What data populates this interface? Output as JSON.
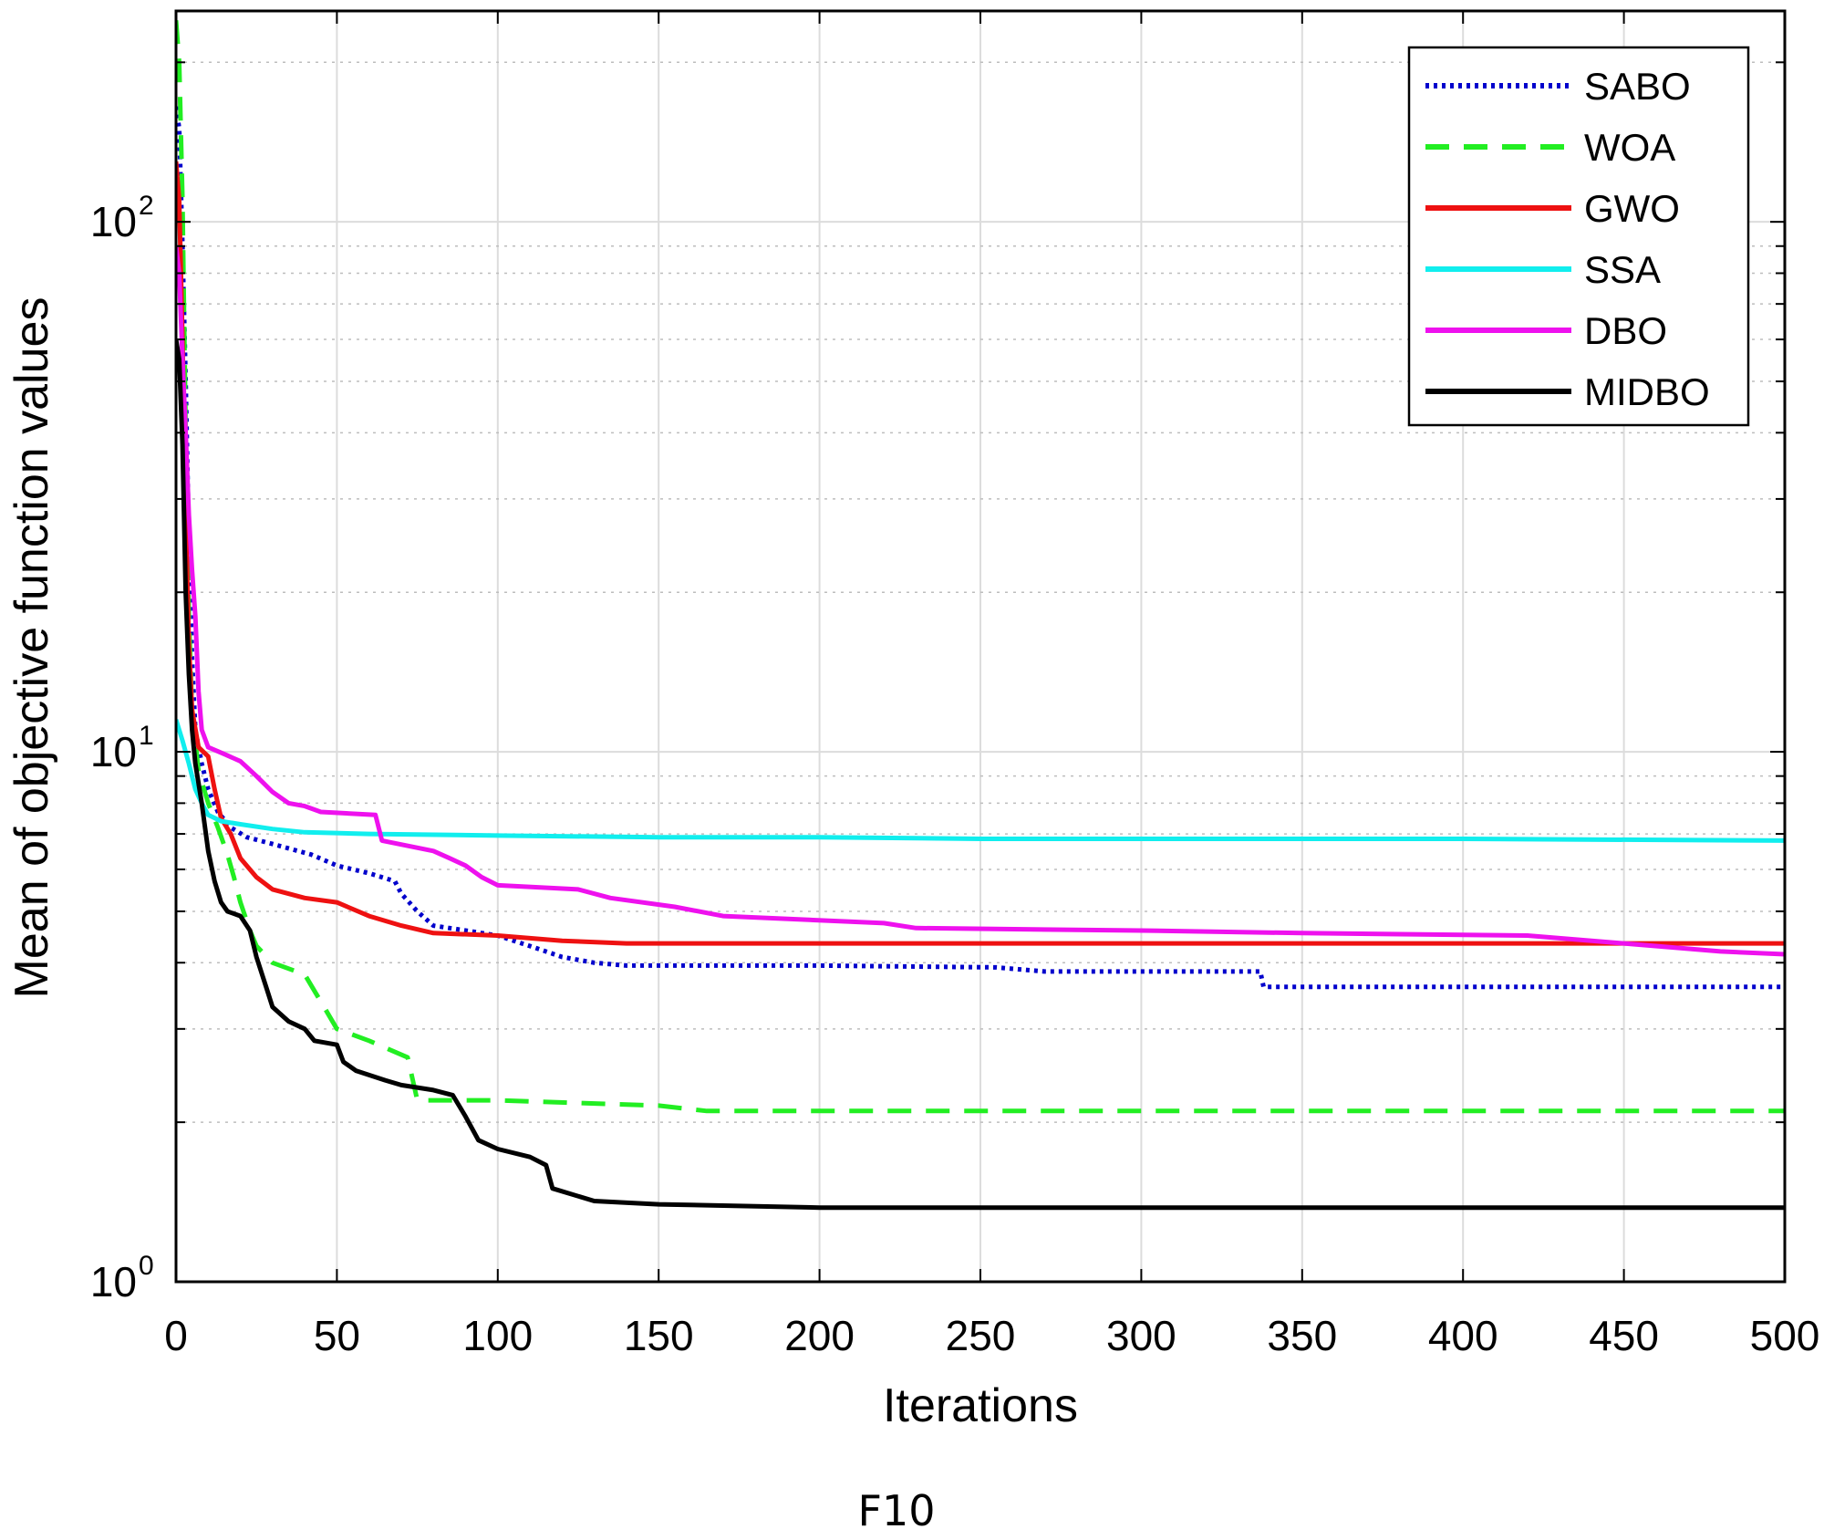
{
  "chart_data": {
    "type": "line",
    "title": "",
    "caption": "F10",
    "xlabel": "Iterations",
    "ylabel": "Mean of objective function values",
    "xlim": [
      0,
      500
    ],
    "ylim": [
      1,
      250
    ],
    "yscale": "log",
    "grid": true,
    "legend_position": "top-right",
    "x_ticks": [
      "0",
      "50",
      "100",
      "150",
      "200",
      "250",
      "300",
      "350",
      "400",
      "450",
      "500"
    ],
    "y_ticks": [
      {
        "base": "10",
        "exp": "0",
        "value": 1
      },
      {
        "base": "10",
        "exp": "1",
        "value": 10
      },
      {
        "base": "10",
        "exp": "2",
        "value": 100
      }
    ],
    "series": [
      {
        "name": "SABO",
        "color": "#0000cc",
        "style": "dotted",
        "points": [
          [
            0,
            165
          ],
          [
            1,
            150
          ],
          [
            2,
            90
          ],
          [
            3,
            50
          ],
          [
            4,
            25
          ],
          [
            5,
            15
          ],
          [
            6,
            11
          ],
          [
            8,
            9.5
          ],
          [
            10,
            8.5
          ],
          [
            13,
            7.7
          ],
          [
            17,
            7.2
          ],
          [
            22,
            6.9
          ],
          [
            30,
            6.7
          ],
          [
            42,
            6.4
          ],
          [
            50,
            6.1
          ],
          [
            60,
            5.9
          ],
          [
            68,
            5.7
          ],
          [
            70,
            5.4
          ],
          [
            75,
            5.0
          ],
          [
            80,
            4.7
          ],
          [
            90,
            4.6
          ],
          [
            100,
            4.5
          ],
          [
            110,
            4.3
          ],
          [
            120,
            4.1
          ],
          [
            130,
            4.0
          ],
          [
            140,
            3.95
          ],
          [
            200,
            3.95
          ],
          [
            255,
            3.92
          ],
          [
            270,
            3.85
          ],
          [
            300,
            3.85
          ],
          [
            337,
            3.85
          ],
          [
            338,
            3.6
          ],
          [
            400,
            3.6
          ],
          [
            500,
            3.6
          ]
        ]
      },
      {
        "name": "WOA",
        "color": "#22ee22",
        "style": "dashed",
        "points": [
          [
            0,
            240
          ],
          [
            1,
            200
          ],
          [
            2,
            110
          ],
          [
            3,
            40
          ],
          [
            4,
            18
          ],
          [
            5,
            12
          ],
          [
            7,
            9.2
          ],
          [
            10,
            8.0
          ],
          [
            13,
            7.2
          ],
          [
            16,
            6.4
          ],
          [
            18,
            5.8
          ],
          [
            20,
            5.2
          ],
          [
            23,
            4.6
          ],
          [
            25,
            4.3
          ],
          [
            30,
            4.0
          ],
          [
            40,
            3.8
          ],
          [
            46,
            3.3
          ],
          [
            50,
            3.0
          ],
          [
            60,
            2.85
          ],
          [
            72,
            2.65
          ],
          [
            75,
            2.2
          ],
          [
            100,
            2.2
          ],
          [
            150,
            2.15
          ],
          [
            165,
            2.1
          ],
          [
            250,
            2.1
          ],
          [
            500,
            2.1
          ]
        ]
      },
      {
        "name": "GWO",
        "color": "#ee1111",
        "style": "solid",
        "points": [
          [
            0,
            130
          ],
          [
            1,
            110
          ],
          [
            2,
            60
          ],
          [
            3,
            28
          ],
          [
            4,
            16
          ],
          [
            5,
            12
          ],
          [
            7,
            10.2
          ],
          [
            10,
            9.8
          ],
          [
            12,
            8.5
          ],
          [
            14,
            7.5
          ],
          [
            17,
            7.0
          ],
          [
            20,
            6.3
          ],
          [
            25,
            5.8
          ],
          [
            30,
            5.5
          ],
          [
            40,
            5.3
          ],
          [
            50,
            5.2
          ],
          [
            60,
            4.9
          ],
          [
            70,
            4.7
          ],
          [
            80,
            4.55
          ],
          [
            100,
            4.5
          ],
          [
            120,
            4.4
          ],
          [
            140,
            4.35
          ],
          [
            200,
            4.35
          ],
          [
            300,
            4.35
          ],
          [
            500,
            4.35
          ]
        ]
      },
      {
        "name": "SSA",
        "color": "#11eeee",
        "style": "solid",
        "points": [
          [
            0,
            11.5
          ],
          [
            2,
            10.5
          ],
          [
            4,
            9.5
          ],
          [
            6,
            8.5
          ],
          [
            8,
            8.0
          ],
          [
            10,
            7.6
          ],
          [
            14,
            7.4
          ],
          [
            20,
            7.3
          ],
          [
            30,
            7.15
          ],
          [
            40,
            7.05
          ],
          [
            60,
            7.0
          ],
          [
            100,
            6.95
          ],
          [
            150,
            6.9
          ],
          [
            200,
            6.9
          ],
          [
            250,
            6.85
          ],
          [
            300,
            6.85
          ],
          [
            400,
            6.85
          ],
          [
            500,
            6.8
          ]
        ]
      },
      {
        "name": "DBO",
        "color": "#ee11ee",
        "style": "solid",
        "points": [
          [
            0,
            90
          ],
          [
            1,
            80
          ],
          [
            2,
            55
          ],
          [
            3,
            40
          ],
          [
            4,
            28
          ],
          [
            5,
            22
          ],
          [
            6,
            18
          ],
          [
            7,
            13
          ],
          [
            8,
            11
          ],
          [
            10,
            10.2
          ],
          [
            15,
            9.9
          ],
          [
            20,
            9.6
          ],
          [
            25,
            9.0
          ],
          [
            30,
            8.4
          ],
          [
            35,
            8.0
          ],
          [
            40,
            7.9
          ],
          [
            45,
            7.7
          ],
          [
            62,
            7.6
          ],
          [
            64,
            6.8
          ],
          [
            80,
            6.5
          ],
          [
            85,
            6.3
          ],
          [
            90,
            6.1
          ],
          [
            95,
            5.8
          ],
          [
            100,
            5.6
          ],
          [
            125,
            5.5
          ],
          [
            135,
            5.3
          ],
          [
            155,
            5.1
          ],
          [
            170,
            4.9
          ],
          [
            220,
            4.75
          ],
          [
            230,
            4.65
          ],
          [
            300,
            4.6
          ],
          [
            350,
            4.55
          ],
          [
            420,
            4.5
          ],
          [
            450,
            4.35
          ],
          [
            480,
            4.2
          ],
          [
            500,
            4.15
          ]
        ]
      },
      {
        "name": "MIDBO",
        "color": "#000000",
        "style": "solid",
        "points": [
          [
            0,
            60
          ],
          [
            1,
            55
          ],
          [
            2,
            38
          ],
          [
            3,
            20
          ],
          [
            4,
            14
          ],
          [
            5,
            11
          ],
          [
            6,
            9.5
          ],
          [
            8,
            8.0
          ],
          [
            10,
            6.5
          ],
          [
            12,
            5.7
          ],
          [
            14,
            5.2
          ],
          [
            16,
            5.0
          ],
          [
            20,
            4.9
          ],
          [
            23,
            4.6
          ],
          [
            25,
            4.1
          ],
          [
            28,
            3.6
          ],
          [
            30,
            3.3
          ],
          [
            35,
            3.1
          ],
          [
            40,
            3.0
          ],
          [
            43,
            2.85
          ],
          [
            50,
            2.8
          ],
          [
            52,
            2.6
          ],
          [
            56,
            2.5
          ],
          [
            65,
            2.4
          ],
          [
            70,
            2.35
          ],
          [
            80,
            2.3
          ],
          [
            86,
            2.25
          ],
          [
            90,
            2.05
          ],
          [
            94,
            1.85
          ],
          [
            100,
            1.78
          ],
          [
            110,
            1.72
          ],
          [
            115,
            1.66
          ],
          [
            117,
            1.5
          ],
          [
            130,
            1.42
          ],
          [
            150,
            1.4
          ],
          [
            200,
            1.38
          ],
          [
            500,
            1.38
          ]
        ]
      }
    ]
  }
}
